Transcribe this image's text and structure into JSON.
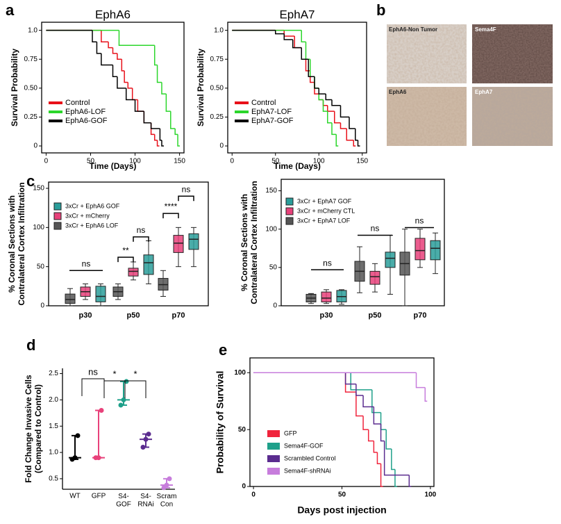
{
  "panel_labels": [
    "a",
    "b",
    "c",
    "d",
    "e"
  ],
  "histology": {
    "labels": [
      "EphA6-Non Tumor",
      "Sema4F",
      "EphA6",
      "EphA7"
    ]
  },
  "chart_data": [
    {
      "type": "survival",
      "title": "EphA6",
      "xlabel": "Time (Days)",
      "ylabel": "Survival Probability",
      "xlim": [
        -5,
        155
      ],
      "ylim": [
        -0.06,
        1.07
      ],
      "xticks": [
        0,
        50,
        100,
        150
      ],
      "yticks": [
        0,
        0.25,
        {
          "value": 0.5,
          "label": "0.50"
        },
        0.75,
        {
          "value": 1,
          "label": "1.0"
        }
      ],
      "series": [
        {
          "name": "Control",
          "color": "#e8101a",
          "x": [
            0,
            62,
            70,
            75,
            80,
            85,
            88,
            92,
            97,
            103,
            110,
            118,
            122,
            125
          ],
          "values": [
            1,
            0.9,
            0.85,
            0.8,
            0.75,
            0.65,
            0.55,
            0.5,
            0.4,
            0.3,
            0.2,
            0.1,
            0.05,
            0
          ]
        },
        {
          "name": "EphA6-LOF",
          "color": "#2bd62b",
          "x": [
            0,
            82,
            122,
            125,
            130,
            135,
            140,
            145,
            148
          ],
          "values": [
            1,
            0.87,
            0.7,
            0.55,
            0.45,
            0.3,
            0.15,
            0.1,
            0
          ]
        },
        {
          "name": "EphA6-GOF",
          "color": "#000000",
          "x": [
            0,
            52,
            57,
            62,
            75,
            80,
            90,
            100,
            110,
            118,
            128,
            130
          ],
          "values": [
            1,
            0.9,
            0.8,
            0.7,
            0.6,
            0.5,
            0.4,
            0.3,
            0.2,
            0.15,
            0.05,
            0
          ]
        }
      ]
    },
    {
      "type": "survival",
      "title": "EphA7",
      "xlabel": "Time (Days)",
      "ylabel": "Survival Probability",
      "xlim": [
        -5,
        155
      ],
      "ylim": [
        -0.06,
        1.07
      ],
      "xticks": [
        0,
        50,
        100,
        150
      ],
      "yticks": [
        0,
        0.25,
        {
          "value": 0.5,
          "label": "0.50"
        },
        0.75,
        {
          "value": 1,
          "label": "1.0"
        }
      ],
      "series": [
        {
          "name": "Control",
          "color": "#e8101a",
          "x": [
            0,
            60,
            72,
            80,
            85,
            90,
            95,
            100,
            105,
            110,
            118,
            125,
            132,
            140
          ],
          "values": [
            1,
            0.95,
            0.85,
            0.75,
            0.65,
            0.55,
            0.45,
            0.4,
            0.35,
            0.3,
            0.2,
            0.15,
            0.05,
            0
          ]
        },
        {
          "name": "EphA7-LOF",
          "color": "#2bd62b",
          "x": [
            0,
            80,
            85,
            90,
            95,
            100,
            105,
            110,
            115,
            120
          ],
          "values": [
            1,
            0.9,
            0.75,
            0.6,
            0.5,
            0.4,
            0.3,
            0.2,
            0.1,
            0
          ]
        },
        {
          "name": "EphA7-GOF",
          "color": "#000000",
          "x": [
            0,
            50,
            60,
            70,
            80,
            88,
            95,
            100,
            108,
            115,
            125,
            135,
            142,
            145
          ],
          "values": [
            1,
            0.97,
            0.92,
            0.85,
            0.75,
            0.6,
            0.5,
            0.45,
            0.4,
            0.35,
            0.25,
            0.15,
            0.05,
            0
          ]
        }
      ]
    },
    {
      "type": "box",
      "ylabel": [
        "% Coronal Sections with",
        "Contralateral Cortex Infiltration"
      ],
      "categories": [
        "p30",
        "p50",
        "p70"
      ],
      "ylim": [
        0,
        158
      ],
      "yticks": [
        0,
        50,
        100,
        150
      ],
      "series": [
        {
          "name": "3xCr + EphA6 GOF",
          "color": "#2a9d9a",
          "values": [
            [
              0,
              5,
              12,
              25,
              28
            ],
            [
              28,
              40,
              55,
              65,
              83
            ],
            [
              50,
              72,
              85,
              92,
              100
            ]
          ]
        },
        {
          "name": "3xCr + mCherry",
          "color": "#e8417a",
          "values": [
            [
              8,
              12,
              18,
              24,
              28
            ],
            [
              33,
              38,
              44,
              48,
              56
            ],
            [
              50,
              68,
              80,
              90,
              100
            ]
          ]
        },
        {
          "name": "3xCr + EphA6 LOF",
          "color": "#555555",
          "values": [
            [
              0,
              3,
              8,
              15,
              22
            ],
            [
              8,
              12,
              18,
              24,
              28
            ],
            [
              12,
              20,
              27,
              35,
              45
            ]
          ]
        }
      ],
      "annotations": [
        "ns",
        "**",
        "ns",
        "****",
        "ns"
      ]
    },
    {
      "type": "box",
      "ylabel": [
        "% Coronal Sections with",
        "Contralateral Cortex Infiltration"
      ],
      "categories": [
        "p30",
        "p50",
        "p70"
      ],
      "ylim": [
        0,
        165
      ],
      "yticks": [
        0,
        50,
        100,
        150
      ],
      "series": [
        {
          "name": "3xCr + EphA7 GOF",
          "color": "#2a9d9a",
          "values": [
            [
              2,
              5,
              12,
              20,
              21
            ],
            [
              15,
              50,
              62,
              70,
              92
            ],
            [
              42,
              60,
              75,
              85,
              95
            ]
          ]
        },
        {
          "name": "3xCr + mCherry CTL",
          "color": "#e8417a",
          "values": [
            [
              3,
              5,
              10,
              18,
              21
            ],
            [
              18,
              28,
              38,
              45,
              55
            ],
            [
              50,
              60,
              72,
              88,
              100
            ]
          ]
        },
        {
          "name": "3xCr + EphA7 LOF",
          "color": "#555555",
          "values": [
            [
              3,
              5,
              10,
              15,
              16
            ],
            [
              17,
              32,
              45,
              58,
              77
            ],
            [
              0,
              40,
              55,
              70,
              100
            ]
          ]
        }
      ],
      "annotations": [
        "ns",
        "ns",
        "ns"
      ]
    },
    {
      "type": "dot",
      "ylabel": [
        "Fold Change Invasive Cells",
        "(Compared to Control)"
      ],
      "categories": [
        "WT",
        "GFP",
        "S4-\nGOF",
        "S4-\nRNAi",
        "Scram\nCon"
      ],
      "colors": [
        "#000000",
        "#e8417a",
        "#1fa08a",
        "#5b2c8f",
        "#c77ddc"
      ],
      "values": [
        [
          0.87,
          0.9,
          1.32
        ],
        [
          0.9,
          0.9,
          1.8
        ],
        [
          1.9,
          2.0,
          2.35
        ],
        [
          1.1,
          1.25,
          1.35
        ],
        [
          0.33,
          0.38,
          0.5
        ]
      ],
      "ylim": [
        0.3,
        2.6
      ],
      "yticks": [
        {
          "value": 0.5,
          "label": "0.5"
        },
        {
          "value": 1,
          "label": "1.0"
        },
        {
          "value": 1.5,
          "label": "1.5"
        },
        {
          "value": 2,
          "label": "2.0"
        },
        {
          "value": 2.5,
          "label": "2.5"
        }
      ],
      "annotations": [
        "ns",
        "*",
        "*"
      ]
    },
    {
      "type": "survival",
      "xlabel": "Days post injection",
      "ylabel": "Probability of Survival",
      "xlim": [
        -2,
        102
      ],
      "ylim": [
        0,
        113
      ],
      "xticks": [
        0,
        50,
        100
      ],
      "yticks": [
        0,
        50,
        100
      ],
      "series": [
        {
          "name": "GFP",
          "color": "#f0243c",
          "x": [
            0,
            52,
            58,
            62,
            65,
            68,
            70,
            72
          ],
          "values": [
            100,
            83,
            62,
            50,
            40,
            30,
            20,
            0
          ]
        },
        {
          "name": "Sema4F-GOF",
          "color": "#1fa08a",
          "x": [
            0,
            55,
            67,
            72,
            75,
            78,
            80
          ],
          "values": [
            100,
            85,
            65,
            50,
            33,
            15,
            0
          ]
        },
        {
          "name": "Scrambled Control",
          "color": "#5b2c8f",
          "x": [
            0,
            52,
            58,
            62,
            68,
            72,
            74,
            88
          ],
          "values": [
            100,
            90,
            80,
            70,
            55,
            40,
            10,
            0
          ]
        },
        {
          "name": "Sema4F-shRNAi",
          "color": "#c77ddc",
          "x": [
            0,
            92,
            97
          ],
          "values": [
            100,
            87,
            75
          ]
        }
      ]
    }
  ]
}
